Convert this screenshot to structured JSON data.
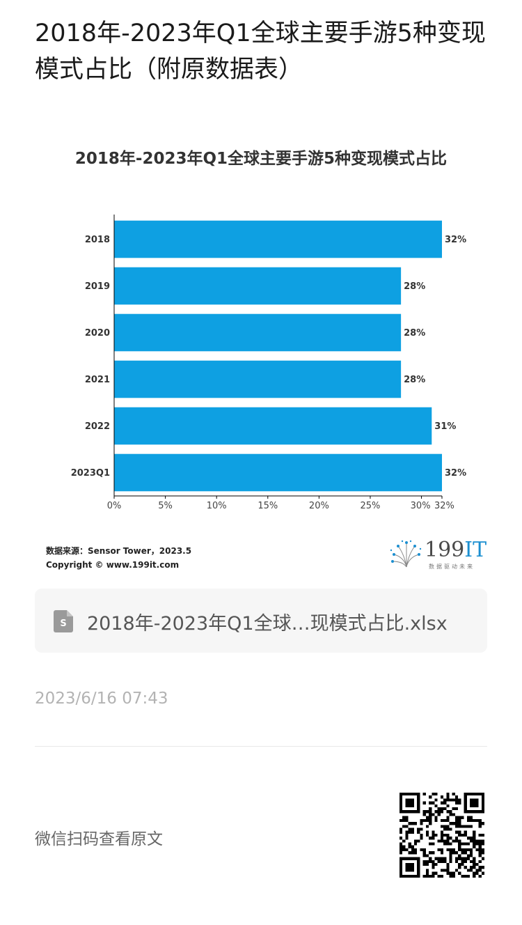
{
  "article": {
    "title": "2018年-2023年Q1全球主要手游5种变现模式占比（附原数据表）"
  },
  "chart": {
    "title": "2018年-2023年Q1全球主要手游5种变现模式占比",
    "source_line": "数据来源：Sensor Tower，2023.5",
    "copyright_line": "Copyright © www.199it.com",
    "bar_color": "#0ea0e2",
    "axis_color": "#000000"
  },
  "chart_data": {
    "type": "bar",
    "orientation": "horizontal",
    "title": "2018年-2023年Q1全球主要手游5种变现模式占比",
    "categories": [
      "2018",
      "2019",
      "2020",
      "2021",
      "2022",
      "2023Q1"
    ],
    "values": [
      32,
      28,
      28,
      28,
      31,
      32
    ],
    "value_labels": [
      "32%",
      "28%",
      "28%",
      "28%",
      "31%",
      "32%"
    ],
    "x_ticks": [
      "0%",
      "5%",
      "10%",
      "15%",
      "20%",
      "25%",
      "30%",
      "32%"
    ],
    "x_tick_values": [
      0,
      5,
      10,
      15,
      20,
      25,
      30,
      32
    ],
    "xlim": [
      0,
      32
    ],
    "grid": false,
    "legend": "none"
  },
  "brand": {
    "name_number": "199",
    "name_letters": "IT",
    "tagline": "数据驱动未来",
    "accent_color": "#1b8fd1"
  },
  "attachment": {
    "file_name": "2018年-2023年Q1全球…现模式占比.xlsx",
    "icon": "spreadsheet-file-icon",
    "icon_letter": "S"
  },
  "meta": {
    "timestamp": "2023/6/16 07:43"
  },
  "footer": {
    "scan_label": "微信扫码查看原文",
    "qr_icon": "qr-code"
  }
}
